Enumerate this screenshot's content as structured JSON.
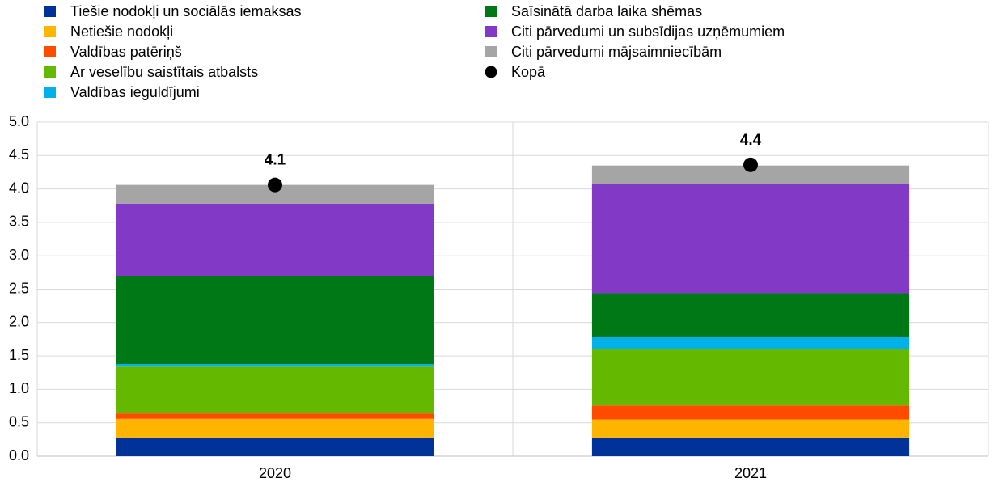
{
  "chart_data": {
    "type": "stacked_bar",
    "categories": [
      "2020",
      "2021"
    ],
    "series": [
      {
        "name": "Tiešie nodokļi un sociālās iemaksas",
        "color": "#003299",
        "values": [
          0.28,
          0.28
        ]
      },
      {
        "name": "Netiešie nodokļi",
        "color": "#ffb400",
        "values": [
          0.28,
          0.27
        ]
      },
      {
        "name": "Valdības patēriņš",
        "color": "#ff4b00",
        "values": [
          0.08,
          0.21
        ]
      },
      {
        "name": "Ar veselību saistītais atbalsts",
        "color": "#65b800",
        "values": [
          0.7,
          0.84
        ]
      },
      {
        "name": "Valdības ieguldījumi",
        "color": "#00b1ea",
        "values": [
          0.04,
          0.19
        ]
      },
      {
        "name": "Saīsinātā darba laika shēmas",
        "color": "#007816",
        "values": [
          1.32,
          0.65
        ]
      },
      {
        "name": "Citi pārvedumi un subsīdijas uzņēmumiem",
        "color": "#8139c6",
        "values": [
          1.08,
          1.63
        ]
      },
      {
        "name": "Citi pārvedumi mājsaimniecībām",
        "color": "#a5a5a5",
        "values": [
          0.28,
          0.28
        ]
      },
      {
        "name": "Kopā",
        "color": "#000000",
        "kind": "marker",
        "values": [
          4.06,
          4.36
        ],
        "value_labels": [
          "4.1",
          "4.4"
        ]
      }
    ],
    "ylim": [
      0,
      5
    ],
    "yticks": [
      {
        "value": 0,
        "label": "0.0"
      },
      {
        "value": 0.5,
        "label": "0.5"
      },
      {
        "value": 1,
        "label": "1.0"
      },
      {
        "value": 1.5,
        "label": "1.5"
      },
      {
        "value": 2,
        "label": "2.0"
      },
      {
        "value": 2.5,
        "label": "2.5"
      },
      {
        "value": 3,
        "label": "3.0"
      },
      {
        "value": 3.5,
        "label": "3.5"
      },
      {
        "value": 4,
        "label": "4.0"
      },
      {
        "value": 4.5,
        "label": "4.5"
      },
      {
        "value": 5,
        "label": "5.0"
      }
    ],
    "grid": true
  }
}
